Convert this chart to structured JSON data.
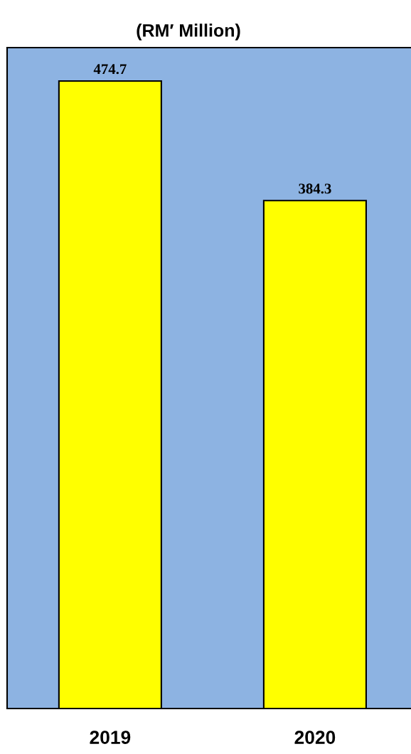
{
  "chart_data": {
    "type": "bar",
    "title": "(RM′ Million)",
    "categories": [
      "2019",
      "2020"
    ],
    "values": [
      474.7,
      384.3
    ],
    "color": "#ffff00",
    "ylim": [
      0,
      500
    ],
    "tick_labels": "x",
    "data_labels": true,
    "grid": false,
    "legend": false
  }
}
